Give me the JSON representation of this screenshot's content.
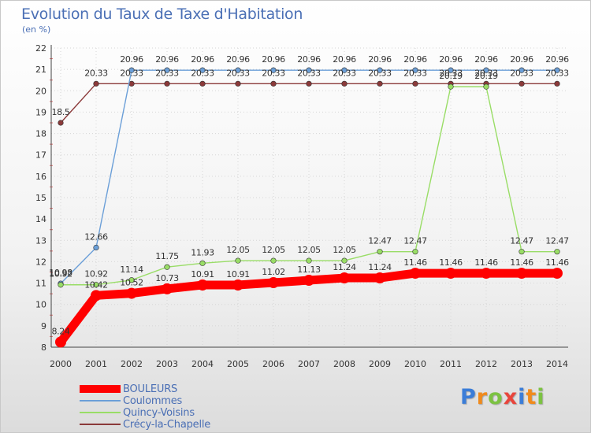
{
  "chart_data": {
    "type": "line",
    "title": "Evolution du Taux de Taxe d'Habitation",
    "subtitle": "(en %)",
    "x": [
      "2000",
      "2001",
      "2002",
      "2003",
      "2004",
      "2005",
      "2006",
      "2007",
      "2008",
      "2009",
      "2010",
      "2011",
      "2012",
      "2013",
      "2014"
    ],
    "y_ticks": [
      "8",
      "9",
      "10",
      "11",
      "12",
      "13",
      "14",
      "15",
      "16",
      "17",
      "18",
      "19",
      "20",
      "21",
      "22"
    ],
    "ylim": [
      8,
      22
    ],
    "grid": true,
    "legend_position": "bottom-left",
    "series": [
      {
        "name": "BOULEURS",
        "color": "#ff0000",
        "values": [
          8.24,
          10.42,
          10.52,
          10.73,
          10.91,
          10.91,
          11.02,
          11.13,
          11.24,
          11.24,
          11.46,
          11.46,
          11.46,
          11.46,
          11.46
        ],
        "labels": [
          "8.24",
          "10.42",
          "10.52",
          "10.73",
          "10.91",
          "10.91",
          "11.02",
          "11.13",
          "11.24",
          "11.24",
          "11.46",
          "11.46",
          "11.46",
          "11.46",
          "11.46"
        ]
      },
      {
        "name": "Coulommes",
        "color": "#6b9fd8",
        "values": [
          10.98,
          12.66,
          20.96,
          20.96,
          20.96,
          20.96,
          20.96,
          20.96,
          20.96,
          20.96,
          20.96,
          20.96,
          20.96,
          20.96,
          20.96
        ],
        "labels": [
          "10.98",
          "12.66",
          "20.96",
          "20.96",
          "20.96",
          "20.96",
          "20.96",
          "20.96",
          "20.96",
          "20.96",
          "20.96",
          "20.96",
          "20.96",
          "20.96",
          "20.96"
        ]
      },
      {
        "name": "Quincy-Voisins",
        "color": "#99dd66",
        "values": [
          10.92,
          10.92,
          11.14,
          11.75,
          11.93,
          12.05,
          12.05,
          12.05,
          12.05,
          12.47,
          12.47,
          20.19,
          20.19,
          12.47,
          12.47
        ],
        "labels": [
          "10.92",
          "10.92",
          "11.14",
          "11.75",
          "11.93",
          "12.05",
          "12.05",
          "12.05",
          "12.05",
          "12.47",
          "12.47",
          "20.19",
          "20.19",
          "12.47",
          "12.47"
        ]
      },
      {
        "name": "Crécy-la-Chapelle",
        "color": "#8b3a3a",
        "values": [
          18.5,
          20.33,
          20.33,
          20.33,
          20.33,
          20.33,
          20.33,
          20.33,
          20.33,
          20.33,
          20.33,
          20.33,
          20.33,
          20.33,
          20.33
        ],
        "labels": [
          "18.5",
          "20.33",
          "20.33",
          "20.33",
          "20.33",
          "20.33",
          "20.33",
          "20.33",
          "20.33",
          "20.33",
          "20.33",
          "20.33",
          "20.33",
          "20.33",
          "20.33"
        ]
      }
    ]
  },
  "brand": {
    "letters": [
      "P",
      "r",
      "o",
      "x",
      "i",
      "t",
      "i"
    ],
    "colors": [
      "#3b7dd8",
      "#f08a1c",
      "#7cc242",
      "#e8453c",
      "#3b7dd8",
      "#f08a1c",
      "#7cc242"
    ]
  }
}
